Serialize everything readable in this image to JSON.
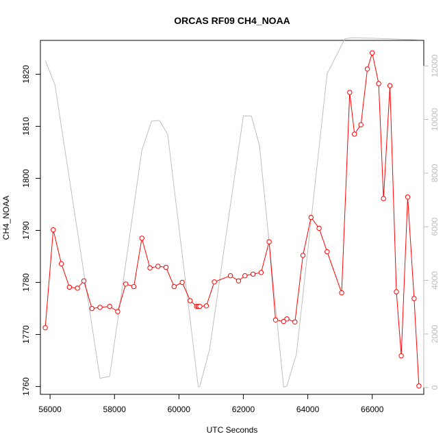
{
  "chart_data": {
    "type": "line",
    "title": "ORCAS RF09 CH4_NOAA",
    "xlabel": "UTC Seconds",
    "ylabel": "CH4_NOAA",
    "xlim": [
      55700,
      67600
    ],
    "ylim": [
      1758.5,
      1826.5
    ],
    "y2lim": [
      -250,
      12950
    ],
    "x_ticks": [
      56000,
      58000,
      60000,
      62000,
      64000,
      66000
    ],
    "y_ticks": [
      1760,
      1770,
      1780,
      1790,
      1800,
      1810,
      1820
    ],
    "y2_ticks": [
      0,
      2000,
      4000,
      6000,
      8000,
      10000,
      12000
    ],
    "grid": false,
    "colors": {
      "ch4": "#ff0000",
      "altitude": "#bebebe",
      "right_axis": "#bdbdbd"
    },
    "series": [
      {
        "axis": "left",
        "style": "line+open-circles",
        "x": [
          55850,
          56100,
          56350,
          56600,
          56850,
          57050,
          57300,
          57550,
          57850,
          58100,
          58350,
          58600,
          58850,
          59100,
          59350,
          59600,
          59850,
          60100,
          60350,
          60550,
          60600,
          60650,
          60850,
          61100,
          61600,
          61850,
          62050,
          62300,
          62550,
          62800,
          63000,
          63250,
          63350,
          63600,
          63850,
          64100,
          64350,
          64600,
          65050,
          65300,
          65450,
          65650,
          65850,
          66000,
          66200,
          66350,
          66550,
          66750,
          66900,
          67100,
          67300,
          67450
        ],
        "y": [
          1771.3,
          1790.1,
          1783.6,
          1779.1,
          1778.9,
          1780.3,
          1775.0,
          1775.2,
          1775.4,
          1774.4,
          1779.7,
          1779.2,
          1788.5,
          1782.8,
          1783.1,
          1782.9,
          1779.2,
          1780.0,
          1776.5,
          1775.4,
          1775.4,
          1775.4,
          1775.5,
          1780.1,
          1781.3,
          1780.3,
          1781.3,
          1781.6,
          1781.9,
          1787.8,
          1772.8,
          1772.5,
          1773.0,
          1772.4,
          1785.2,
          1792.5,
          1790.4,
          1785.9,
          1778.0,
          1816.5,
          1808.5,
          1810.3,
          1821.0,
          1824.1,
          1818.2,
          1796.1,
          1817.8,
          1778.2,
          1765.9,
          1796.4,
          1776.9,
          1760.1
        ]
      },
      {
        "axis": "right",
        "style": "line",
        "x": [
          55850,
          56150,
          57550,
          57850,
          58850,
          59150,
          59400,
          59650,
          60600,
          60650,
          60950,
          62000,
          62250,
          62500,
          63250,
          63350,
          63650,
          64600,
          65150,
          65400,
          66000,
          67450
        ],
        "y": [
          12200,
          11300,
          350,
          420,
          8850,
          9940,
          9960,
          9450,
          30,
          50,
          1430,
          10140,
          10130,
          9030,
          20,
          60,
          1270,
          11700,
          13010,
          13050,
          13030,
          12970
        ]
      }
    ]
  }
}
